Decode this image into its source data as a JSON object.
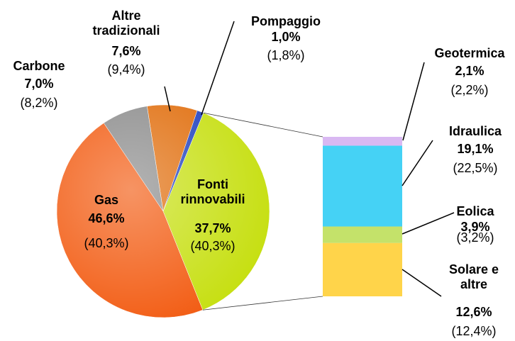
{
  "chart_data": {
    "type": "pie-of-bar",
    "categories": [
      "Altre tradizionali",
      "Pompaggio",
      "Fonti rinnovabili",
      "Gas",
      "Carbone"
    ],
    "values": [
      7.6,
      1.0,
      37.7,
      46.6,
      7.0
    ],
    "value_labels": [
      "7,6%",
      "1,0%",
      "37,7%",
      "46,6%",
      "7,0%"
    ],
    "secondary_values": [
      9.4,
      1.8,
      40.3,
      40.3,
      8.2
    ],
    "secondary_value_labels": [
      "(9,4%)",
      "(1,8%)",
      "(40,3%)",
      "(40,3%)",
      "(8,2%)"
    ],
    "colors": [
      "#e06c0a",
      "#1f3fbf",
      "#c6df10",
      "#f25a10",
      "#8a8a8a"
    ],
    "breakdown": {
      "categories": [
        "Geotermica",
        "Idraulica",
        "Eolica",
        "Solare e altre"
      ],
      "values": [
        2.1,
        19.1,
        3.9,
        12.6
      ],
      "value_labels": [
        "2,1%",
        "19,1%",
        "3,9%",
        "12,6%"
      ],
      "secondary_values": [
        2.2,
        22.5,
        3.2,
        12.4
      ],
      "secondary_value_labels": [
        "(2,2%)",
        "(22,5%)",
        "(3,2%)",
        "(12,4%)"
      ],
      "colors": [
        "#d9b8f2",
        "#45d2f5",
        "#c4e26a",
        "#ffd44a"
      ]
    }
  }
}
